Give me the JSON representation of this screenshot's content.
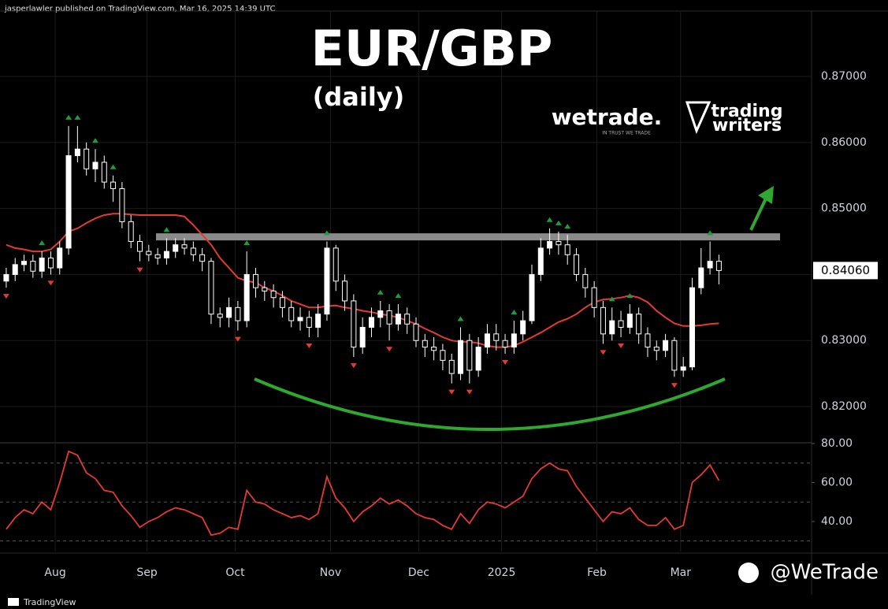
{
  "header": {
    "byline": "jasperlawler published on TradingView.com, Mar 16, 2025 14:39 UTC",
    "title": "EUR/GBP",
    "subtitle": "(daily)",
    "logo1": "wetrade.",
    "logo1_tagline": "IN TRUST WE TRADE",
    "logo2_line1": "trading",
    "logo2_line2": "writers"
  },
  "footer": {
    "brand": "TradingView",
    "handle": "@WeTrade"
  },
  "chart_data": [
    {
      "type": "candlestick",
      "name": "EUR/GBP",
      "open": [
        0.839,
        0.84,
        0.8415,
        0.842,
        0.8405,
        0.8425,
        0.841,
        0.844,
        0.858,
        0.859,
        0.856,
        0.857,
        0.854,
        0.853,
        0.848,
        0.845,
        0.8435,
        0.843,
        0.8425,
        0.8435,
        0.8445,
        0.844,
        0.843,
        0.842,
        0.834,
        0.8335,
        0.835,
        0.833,
        0.84,
        0.838,
        0.8375,
        0.8365,
        0.835,
        0.833,
        0.8335,
        0.832,
        0.834,
        0.844,
        0.839,
        0.836,
        0.829,
        0.832,
        0.8335,
        0.8345,
        0.8325,
        0.834,
        0.8325,
        0.83,
        0.829,
        0.8285,
        0.827,
        0.825,
        0.83,
        0.8255,
        0.829,
        0.831,
        0.83,
        0.829,
        0.831,
        0.833,
        0.84,
        0.844,
        0.845,
        0.8445,
        0.843,
        0.84,
        0.838,
        0.835,
        0.831,
        0.833,
        0.832,
        0.834,
        0.831,
        0.829,
        0.8285,
        0.83,
        0.8255,
        0.826,
        0.838,
        0.841,
        0.842
      ],
      "high": [
        0.841,
        0.8425,
        0.843,
        0.843,
        0.8435,
        0.8435,
        0.845,
        0.8625,
        0.8625,
        0.86,
        0.859,
        0.858,
        0.855,
        0.854,
        0.849,
        0.846,
        0.8445,
        0.844,
        0.8455,
        0.8455,
        0.8455,
        0.845,
        0.844,
        0.8425,
        0.835,
        0.8365,
        0.836,
        0.8435,
        0.841,
        0.839,
        0.8385,
        0.8375,
        0.836,
        0.835,
        0.8345,
        0.8355,
        0.845,
        0.8445,
        0.84,
        0.837,
        0.8335,
        0.835,
        0.836,
        0.8355,
        0.8355,
        0.835,
        0.8335,
        0.831,
        0.8305,
        0.8295,
        0.828,
        0.832,
        0.831,
        0.8305,
        0.8325,
        0.8325,
        0.831,
        0.833,
        0.8345,
        0.8415,
        0.8455,
        0.847,
        0.8465,
        0.846,
        0.844,
        0.841,
        0.839,
        0.836,
        0.835,
        0.8345,
        0.8355,
        0.835,
        0.832,
        0.83,
        0.831,
        0.8305,
        0.8275,
        0.8395,
        0.844,
        0.845,
        0.843
      ],
      "low": [
        0.838,
        0.839,
        0.8405,
        0.8395,
        0.8395,
        0.84,
        0.84,
        0.843,
        0.857,
        0.855,
        0.854,
        0.853,
        0.851,
        0.847,
        0.844,
        0.842,
        0.842,
        0.8415,
        0.8415,
        0.8425,
        0.843,
        0.842,
        0.8405,
        0.8325,
        0.832,
        0.832,
        0.8315,
        0.832,
        0.8365,
        0.836,
        0.835,
        0.8335,
        0.832,
        0.8315,
        0.8305,
        0.8305,
        0.833,
        0.8375,
        0.8345,
        0.8275,
        0.828,
        0.8305,
        0.832,
        0.83,
        0.8315,
        0.831,
        0.829,
        0.8275,
        0.827,
        0.8255,
        0.8235,
        0.824,
        0.8235,
        0.8245,
        0.828,
        0.8285,
        0.828,
        0.828,
        0.83,
        0.8325,
        0.839,
        0.843,
        0.843,
        0.8415,
        0.839,
        0.8365,
        0.8335,
        0.8295,
        0.83,
        0.8305,
        0.831,
        0.8295,
        0.8275,
        0.827,
        0.8275,
        0.8245,
        0.8245,
        0.8255,
        0.837,
        0.84,
        0.8385
      ],
      "close": [
        0.84,
        0.8415,
        0.842,
        0.8405,
        0.8425,
        0.841,
        0.844,
        0.858,
        0.859,
        0.856,
        0.857,
        0.854,
        0.853,
        0.848,
        0.845,
        0.8435,
        0.843,
        0.8425,
        0.8435,
        0.8445,
        0.844,
        0.843,
        0.842,
        0.834,
        0.8335,
        0.835,
        0.833,
        0.84,
        0.838,
        0.8375,
        0.8365,
        0.835,
        0.833,
        0.8335,
        0.832,
        0.834,
        0.844,
        0.839,
        0.836,
        0.829,
        0.832,
        0.8335,
        0.8345,
        0.8325,
        0.834,
        0.8325,
        0.83,
        0.829,
        0.8285,
        0.827,
        0.825,
        0.83,
        0.8255,
        0.829,
        0.831,
        0.83,
        0.829,
        0.831,
        0.833,
        0.84,
        0.844,
        0.845,
        0.8445,
        0.843,
        0.84,
        0.838,
        0.835,
        0.831,
        0.833,
        0.832,
        0.834,
        0.831,
        0.829,
        0.8285,
        0.83,
        0.8255,
        0.826,
        0.838,
        0.841,
        0.842,
        0.8406
      ],
      "moving_average": {
        "color": "#e53935",
        "values": [
          0.8445,
          0.844,
          0.8438,
          0.8435,
          0.8435,
          0.8438,
          0.845,
          0.8465,
          0.847,
          0.8478,
          0.8485,
          0.849,
          0.8492,
          0.8492,
          0.8491,
          0.849,
          0.849,
          0.849,
          0.849,
          0.849,
          0.8488,
          0.8475,
          0.846,
          0.8445,
          0.8425,
          0.841,
          0.8395,
          0.839,
          0.8388,
          0.838,
          0.8375,
          0.8368,
          0.836,
          0.8355,
          0.835,
          0.835,
          0.8352,
          0.8353,
          0.835,
          0.8348,
          0.8345,
          0.8343,
          0.834,
          0.8338,
          0.8335,
          0.833,
          0.8325,
          0.8318,
          0.8312,
          0.8305,
          0.83,
          0.8298,
          0.8298,
          0.8296,
          0.8292,
          0.829,
          0.829,
          0.8292,
          0.8298,
          0.8305,
          0.8312,
          0.832,
          0.8328,
          0.8333,
          0.834,
          0.835,
          0.8358,
          0.8362,
          0.8363,
          0.8365,
          0.8368,
          0.8365,
          0.8358,
          0.8345,
          0.8335,
          0.8326,
          0.8322,
          0.8322,
          0.8323,
          0.8325,
          0.8326
        ]
      },
      "pivot_high_index": [
        4,
        7,
        8,
        10,
        12,
        18,
        27,
        36,
        42,
        44,
        51,
        57,
        61,
        62,
        63,
        68,
        70,
        79
      ],
      "pivot_low_index": [
        0,
        5,
        15,
        26,
        34,
        39,
        43,
        50,
        52,
        56,
        67,
        69,
        75
      ],
      "up_color": "#ffffff",
      "down_color": "#000000",
      "pivot_high_color": "#1b9e3e",
      "pivot_low_color": "#e53935",
      "resistance": 0.8457,
      "resistance_color": "#8a8a8a",
      "last_price": {
        "value": 0.8406,
        "label": "0.84060"
      },
      "xlim": [
        -0.7,
        90.4
      ],
      "xticks": [
        {
          "value": 5.5,
          "label": "Aug"
        },
        {
          "value": 15.8,
          "label": "Sep"
        },
        {
          "value": 25.7,
          "label": "Oct"
        },
        {
          "value": 36.4,
          "label": "Nov"
        },
        {
          "value": 46.3,
          "label": "Dec"
        },
        {
          "value": 55.6,
          "label": "2025"
        },
        {
          "value": 66.3,
          "label": "Feb"
        },
        {
          "value": 75.7,
          "label": "Mar"
        }
      ],
      "ylim": [
        0.81475,
        0.87979
      ],
      "yticks": [
        {
          "value": 0.82,
          "label": "0.82000"
        },
        {
          "value": 0.83,
          "label": "0.83000"
        },
        {
          "value": 0.84,
          "label": "0.84000"
        },
        {
          "value": 0.85,
          "label": "0.85000"
        },
        {
          "value": 0.86,
          "label": "0.86000"
        },
        {
          "value": 0.87,
          "label": "0.87000"
        }
      ],
      "grid": true
    },
    {
      "type": "line",
      "name": "RSI",
      "color": "#e53935",
      "values": [
        36,
        42,
        46,
        44,
        50,
        46,
        60,
        76,
        74,
        65,
        62,
        56,
        55,
        48,
        43,
        37,
        40,
        42,
        45,
        47,
        46,
        44,
        42,
        33,
        34,
        37,
        36,
        56,
        50,
        49,
        46,
        44,
        42,
        43,
        41,
        44,
        63,
        52,
        47,
        40,
        45,
        48,
        52,
        49,
        51,
        48,
        44,
        42,
        41,
        38,
        36,
        44,
        39,
        46,
        50,
        49,
        47,
        50,
        53,
        62,
        67,
        70,
        67,
        66,
        58,
        52,
        46,
        40,
        45,
        44,
        47,
        41,
        38,
        38,
        42,
        36,
        38,
        60,
        64,
        69,
        61
      ],
      "bands": [
        70,
        50,
        30
      ],
      "xlim": [
        -0.7,
        90.4
      ],
      "ylim": [
        24.6,
        80
      ],
      "yticks": [
        {
          "value": 40,
          "label": "40.00"
        },
        {
          "value": 60,
          "label": "60.00"
        },
        {
          "value": 80,
          "label": "80.00"
        }
      ]
    }
  ]
}
